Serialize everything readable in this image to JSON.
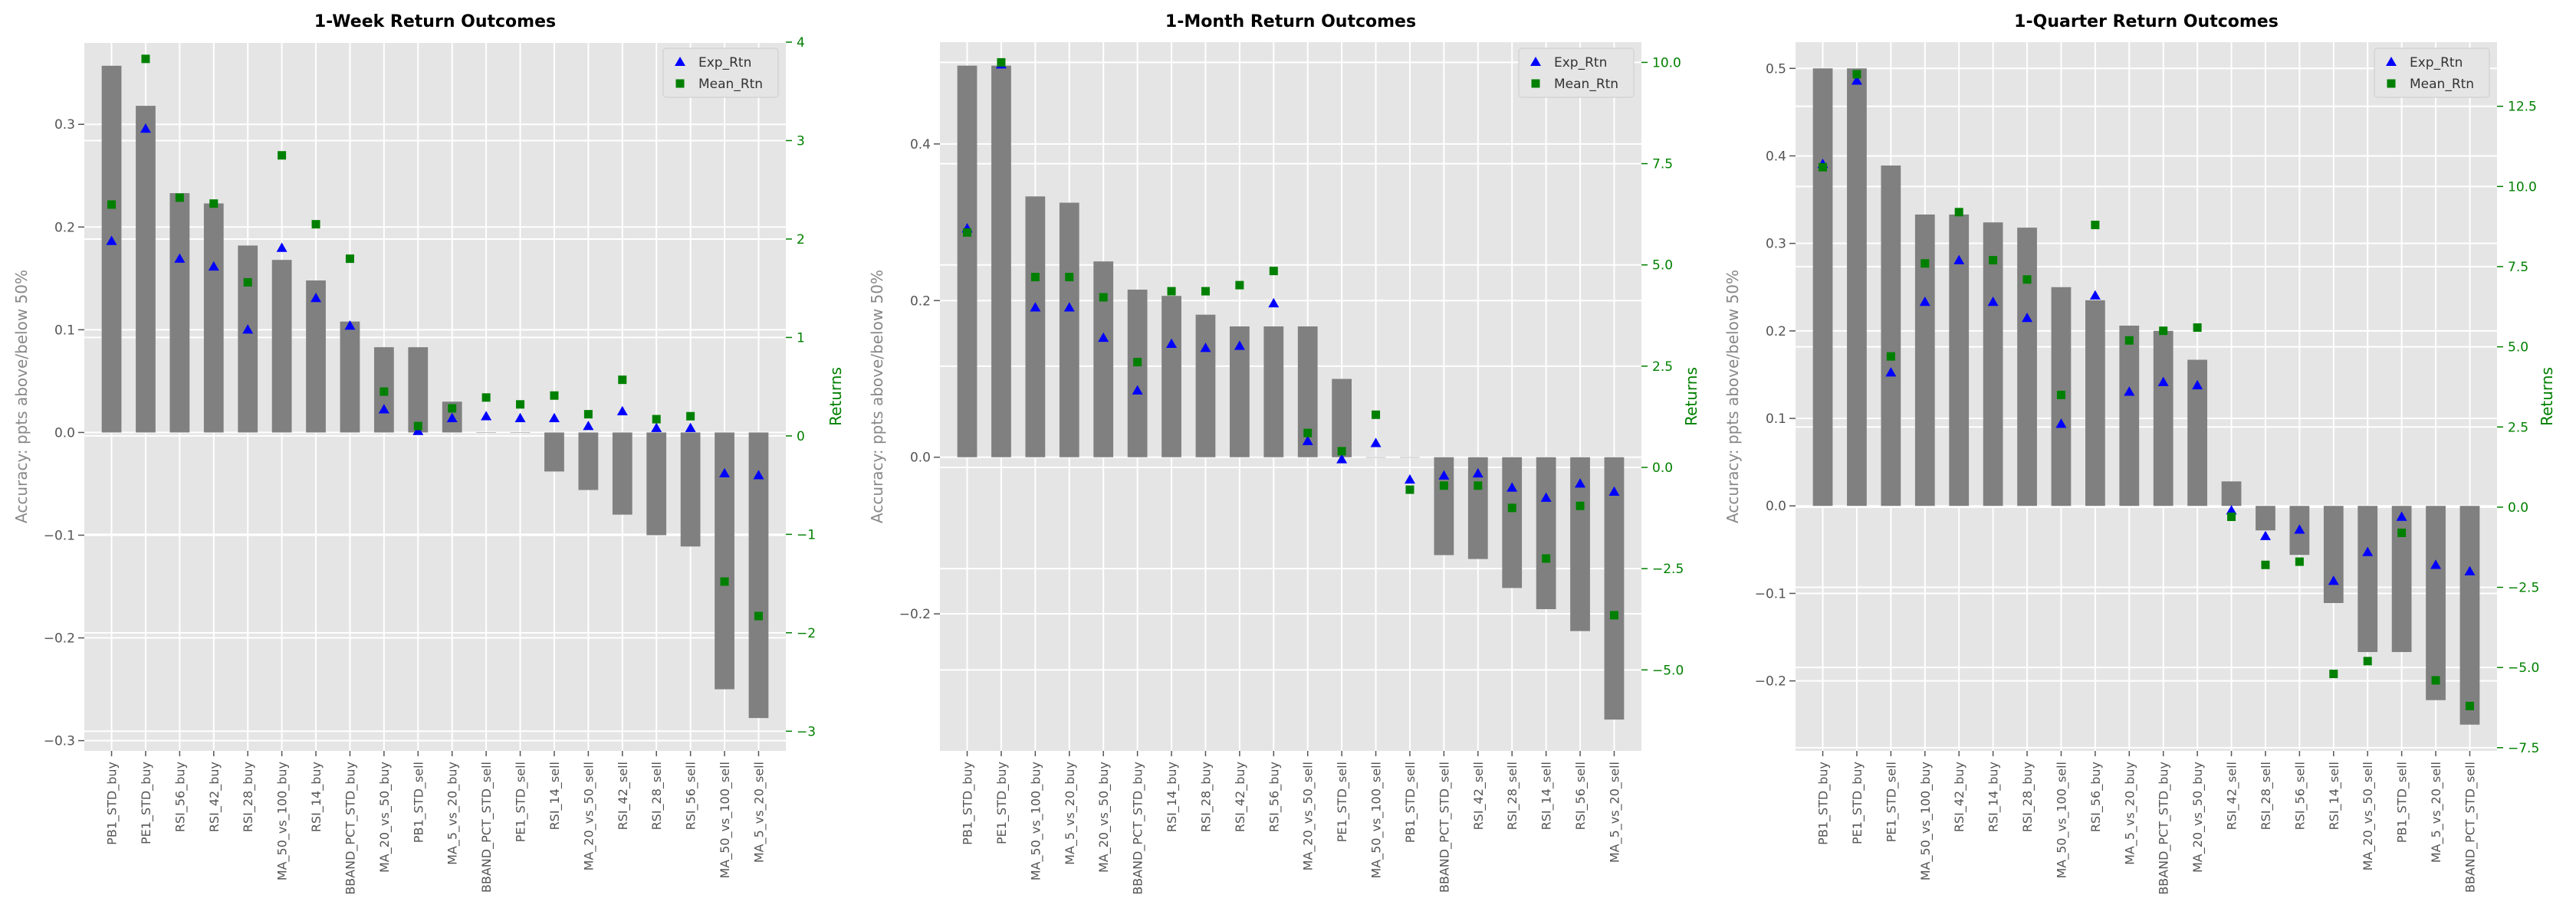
{
  "chart_data": [
    {
      "type": "bar",
      "title": "1-Week Return Outcomes",
      "ylabel": "Accuracy: ppts above/below 50%",
      "y2label": "Returns",
      "ylim": [
        -0.31,
        0.38
      ],
      "y2lim": [
        -3.2,
        4.0
      ],
      "yticks": [
        -0.3,
        -0.2,
        -0.1,
        0.0,
        0.1,
        0.2,
        0.3
      ],
      "y2ticks": [
        -3,
        -2,
        -1,
        0,
        1,
        2,
        3,
        4
      ],
      "grid": true,
      "legend_position": "top-right",
      "categories": [
        "PB1_STD_buy",
        "PE1_STD_buy",
        "RSI_56_buy",
        "RSI_42_buy",
        "RSI_28_buy",
        "MA_50_vs_100_buy",
        "RSI_14_buy",
        "BBAND_PCT_STD_buy",
        "MA_20_vs_50_buy",
        "PB1_STD_sell",
        "MA_5_vs_20_buy",
        "BBAND_PCT_STD_sell",
        "PE1_STD_sell",
        "RSI_14_sell",
        "MA_20_vs_50_sell",
        "RSI_42_sell",
        "RSI_28_sell",
        "RSI_56_sell",
        "MA_50_vs_100_sell",
        "MA_5_vs_20_sell"
      ],
      "bars": [
        0.357,
        0.318,
        0.233,
        0.223,
        0.182,
        0.168,
        0.148,
        0.108,
        0.083,
        0.083,
        0.03,
        0.0,
        0.0,
        -0.038,
        -0.056,
        -0.08,
        -0.1,
        -0.111,
        -0.25,
        -0.278
      ],
      "series": [
        {
          "name": "Exp_Rtn",
          "marker": "triangle",
          "color": "#0000ff",
          "axis": "right",
          "values": [
            1.98,
            3.12,
            1.8,
            1.72,
            1.08,
            1.91,
            1.4,
            1.12,
            0.27,
            0.05,
            0.18,
            0.2,
            0.18,
            0.18,
            0.1,
            0.25,
            0.08,
            0.08,
            -0.38,
            -0.4
          ]
        },
        {
          "name": "Mean_Rtn",
          "marker": "square",
          "color": "#008000",
          "axis": "right",
          "values": [
            2.35,
            3.83,
            2.42,
            2.36,
            1.56,
            2.85,
            2.15,
            1.8,
            0.45,
            0.1,
            0.28,
            0.39,
            0.32,
            0.41,
            0.22,
            0.57,
            0.17,
            0.2,
            -1.48,
            -1.83
          ]
        }
      ]
    },
    {
      "type": "bar",
      "title": "1-Month Return Outcomes",
      "ylabel": "Accuracy: ppts above/below 50%",
      "y2label": "Returns",
      "ylim": [
        -0.375,
        0.53
      ],
      "y2lim": [
        -7.0,
        10.5
      ],
      "yticks": [
        -0.2,
        0.0,
        0.2,
        0.4
      ],
      "y2ticks": [
        -5.0,
        -2.5,
        0.0,
        2.5,
        5.0,
        7.5,
        10.0
      ],
      "grid": true,
      "legend_position": "top-right",
      "categories": [
        "PB1_STD_buy",
        "PE1_STD_buy",
        "MA_50_vs_100_buy",
        "MA_5_vs_20_buy",
        "MA_20_vs_50_buy",
        "BBAND_PCT_STD_buy",
        "RSI_14_buy",
        "RSI_28_buy",
        "RSI_42_buy",
        "RSI_56_buy",
        "MA_20_vs_50_sell",
        "PE1_STD_sell",
        "MA_50_vs_100_sell",
        "PB1_STD_sell",
        "BBAND_PCT_STD_sell",
        "RSI_42_sell",
        "RSI_28_sell",
        "RSI_14_sell",
        "RSI_56_sell",
        "MA_5_vs_20_sell"
      ],
      "bars": [
        0.5,
        0.5,
        0.333,
        0.325,
        0.25,
        0.214,
        0.206,
        0.182,
        0.167,
        0.167,
        0.167,
        0.1,
        0.0,
        0.0,
        -0.125,
        -0.13,
        -0.167,
        -0.194,
        -0.222,
        -0.335
      ],
      "series": [
        {
          "name": "Exp_Rtn",
          "marker": "triangle",
          "color": "#0000ff",
          "axis": "right",
          "values": [
            5.9,
            9.95,
            3.95,
            3.95,
            3.2,
            1.9,
            3.05,
            2.95,
            3.0,
            4.05,
            0.65,
            0.2,
            0.6,
            -0.3,
            -0.2,
            -0.15,
            -0.5,
            -0.75,
            -0.4,
            -0.6
          ]
        },
        {
          "name": "Mean_Rtn",
          "marker": "square",
          "color": "#008000",
          "axis": "right",
          "values": [
            5.8,
            10.0,
            4.7,
            4.7,
            4.2,
            2.6,
            4.35,
            4.35,
            4.5,
            4.85,
            0.85,
            0.4,
            1.3,
            -0.55,
            -0.45,
            -0.45,
            -1.0,
            -2.25,
            -0.95,
            -3.65
          ]
        }
      ]
    },
    {
      "type": "bar",
      "title": "1-Quarter Return Outcomes",
      "ylabel": "Accuracy: ppts above/below 50%",
      "y2label": "Returns",
      "ylim": [
        -0.28,
        0.53
      ],
      "y2lim": [
        -7.6,
        14.5
      ],
      "yticks": [
        -0.2,
        -0.1,
        0.0,
        0.1,
        0.2,
        0.3,
        0.4,
        0.5
      ],
      "y2ticks": [
        -7.5,
        -5.0,
        -2.5,
        0.0,
        2.5,
        5.0,
        7.5,
        10.0,
        12.5
      ],
      "grid": true,
      "legend_position": "top-right",
      "categories": [
        "PB1_STD_buy",
        "PE1_STD_buy",
        "PE1_STD_sell",
        "MA_50_vs_100_buy",
        "RSI_42_buy",
        "RSI_14_buy",
        "RSI_28_buy",
        "MA_50_vs_100_sell",
        "RSI_56_buy",
        "MA_5_vs_20_buy",
        "BBAND_PCT_STD_buy",
        "MA_20_vs_50_buy",
        "RSI_42_sell",
        "RSI_28_sell",
        "RSI_56_sell",
        "RSI_14_sell",
        "MA_20_vs_50_sell",
        "PB1_STD_sell",
        "MA_5_vs_20_sell",
        "BBAND_PCT_STD_sell"
      ],
      "bars": [
        0.5,
        0.5,
        0.389,
        0.333,
        0.333,
        0.324,
        0.318,
        0.25,
        0.235,
        0.206,
        0.2,
        0.167,
        0.028,
        -0.028,
        -0.056,
        -0.111,
        -0.167,
        -0.167,
        -0.222,
        -0.25
      ],
      "series": [
        {
          "name": "Exp_Rtn",
          "marker": "triangle",
          "color": "#0000ff",
          "axis": "right",
          "values": [
            10.7,
            13.3,
            4.2,
            6.4,
            7.7,
            6.4,
            5.9,
            2.6,
            6.6,
            3.6,
            3.9,
            3.8,
            -0.1,
            -0.9,
            -0.7,
            -2.3,
            -1.4,
            -0.3,
            -1.8,
            -2.0
          ]
        },
        {
          "name": "Mean_Rtn",
          "marker": "square",
          "color": "#008000",
          "axis": "right",
          "values": [
            10.6,
            13.5,
            4.7,
            7.6,
            9.2,
            7.7,
            7.1,
            3.5,
            8.8,
            5.2,
            5.5,
            5.6,
            -0.3,
            -1.8,
            -1.7,
            -5.2,
            -4.8,
            -0.8,
            -5.4,
            -6.2
          ]
        }
      ]
    }
  ]
}
